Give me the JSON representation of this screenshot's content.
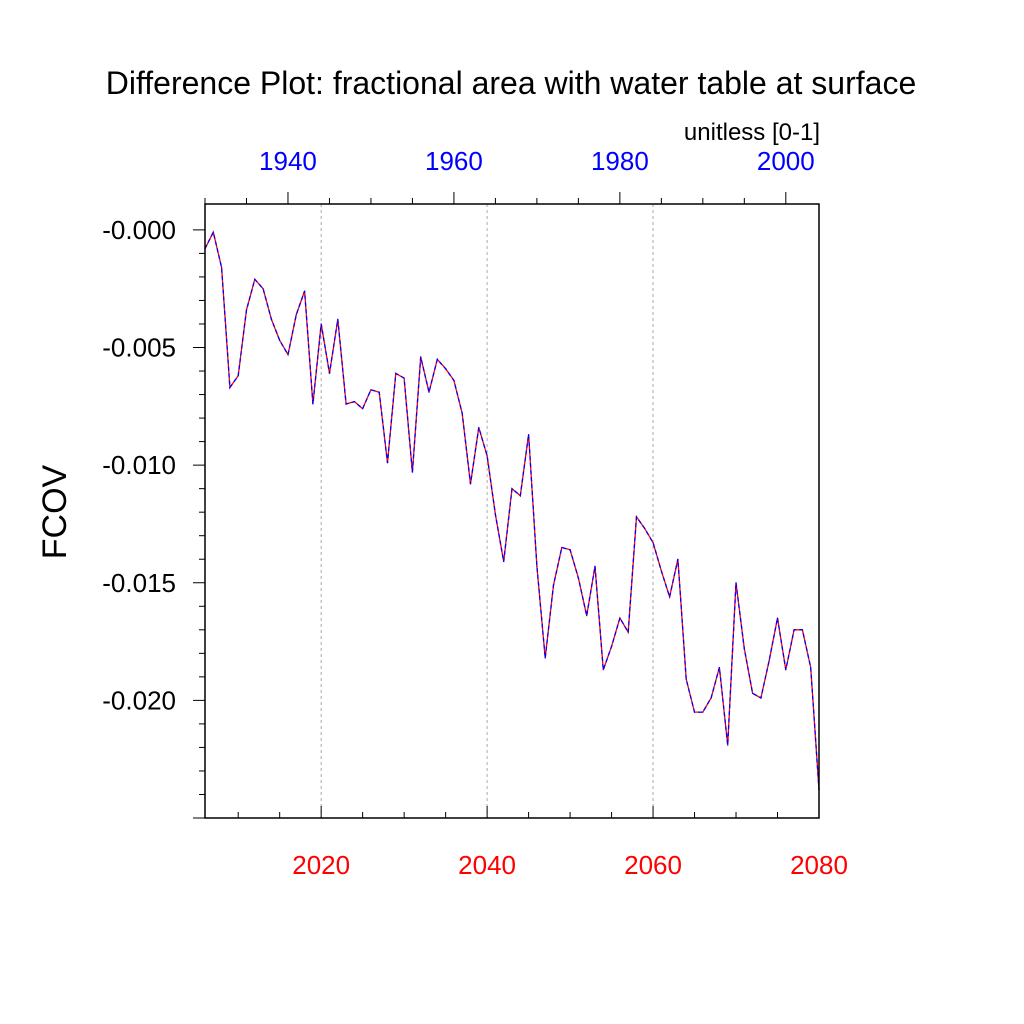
{
  "chart_data": {
    "type": "line",
    "title": "Difference Plot: fractional area with water table at surface",
    "units": "unitless [0-1]",
    "ylabel": "FCOV",
    "xlabel": "",
    "ylim": [
      -0.025,
      0.0011
    ],
    "grid": "vertical dashed lines at bottom-axis major ticks",
    "bottom_axis": {
      "color": "#ff0000",
      "range": [
        2006,
        2080
      ],
      "ticks": [
        2020,
        2040,
        2060,
        2080
      ],
      "tick_labels": [
        "2020",
        "2040",
        "2060",
        "2080"
      ]
    },
    "top_axis": {
      "color": "#0000ff",
      "range": [
        1930,
        2004
      ],
      "ticks": [
        1940,
        1960,
        1980,
        2000
      ],
      "tick_labels": [
        "1940",
        "1960",
        "1980",
        "2000"
      ]
    },
    "y_ticks": [
      0.0,
      -0.005,
      -0.01,
      -0.015,
      -0.02
    ],
    "y_tick_labels": [
      "-0.000",
      "-0.005",
      "-0.010",
      "-0.015",
      "-0.020"
    ],
    "series": [
      {
        "colors": [
          "#ff0000",
          "#0000ff"
        ],
        "style": "dashed",
        "x": [
          2006,
          2007,
          2008,
          2009,
          2010,
          2011,
          2012,
          2013,
          2014,
          2015,
          2016,
          2017,
          2018,
          2019,
          2020,
          2021,
          2022,
          2023,
          2024,
          2025,
          2026,
          2027,
          2028,
          2029,
          2030,
          2031,
          2032,
          2033,
          2034,
          2035,
          2036,
          2037,
          2038,
          2039,
          2040,
          2041,
          2042,
          2043,
          2044,
          2045,
          2046,
          2047,
          2048,
          2049,
          2050,
          2051,
          2052,
          2053,
          2054,
          2055,
          2056,
          2057,
          2058,
          2059,
          2060,
          2061,
          2062,
          2063,
          2064,
          2065,
          2066,
          2067,
          2068,
          2069,
          2070,
          2071,
          2072,
          2073,
          2074,
          2075,
          2076,
          2077,
          2078,
          2079,
          2080
        ],
        "y": [
          -0.0008,
          -0.0001,
          -0.0016,
          -0.0067,
          -0.0062,
          -0.0034,
          -0.0021,
          -0.0025,
          -0.0038,
          -0.0047,
          -0.0053,
          -0.0036,
          -0.0026,
          -0.0074,
          -0.004,
          -0.0061,
          -0.0038,
          -0.0074,
          -0.0073,
          -0.0076,
          -0.0068,
          -0.0069,
          -0.0099,
          -0.0061,
          -0.0063,
          -0.0103,
          -0.0054,
          -0.0069,
          -0.0055,
          -0.0059,
          -0.0064,
          -0.0078,
          -0.0108,
          -0.0084,
          -0.0096,
          -0.0121,
          -0.0141,
          -0.011,
          -0.0113,
          -0.0087,
          -0.0143,
          -0.0182,
          -0.0151,
          -0.0135,
          -0.0136,
          -0.0148,
          -0.0164,
          -0.0143,
          -0.0187,
          -0.0177,
          -0.0165,
          -0.0171,
          -0.0122,
          -0.0127,
          -0.0133,
          -0.0145,
          -0.0156,
          -0.014,
          -0.0191,
          -0.0205,
          -0.0205,
          -0.0199,
          -0.0186,
          -0.0219,
          -0.015,
          -0.0178,
          -0.0197,
          -0.0199,
          -0.0183,
          -0.0165,
          -0.0187,
          -0.017,
          -0.017,
          -0.0186,
          -0.0238
        ]
      }
    ]
  }
}
